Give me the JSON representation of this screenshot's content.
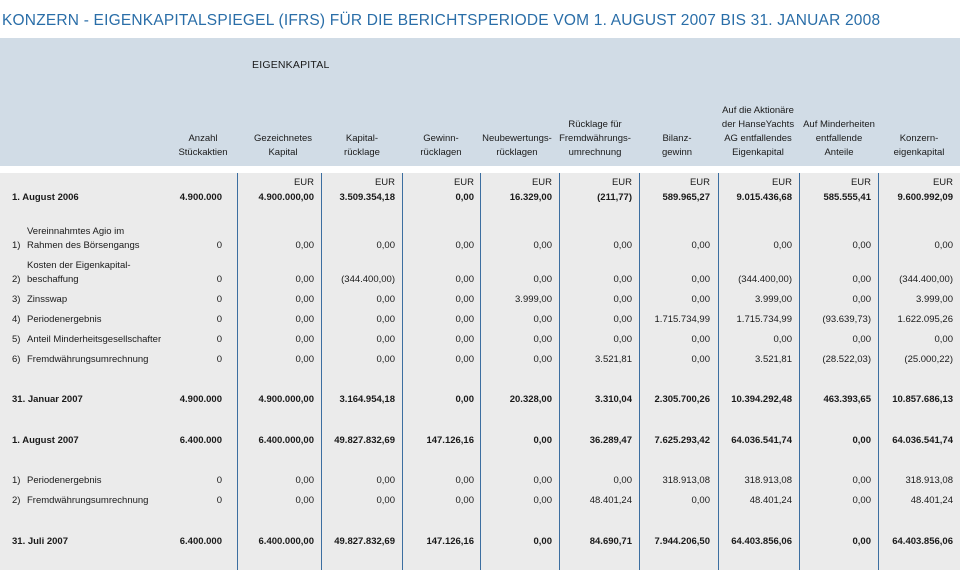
{
  "title": "KONZERN - EIGENKAPITALSPIEGEL (IFRS) FÜR DIE BERICHTSPERIODE VOM 1. AUGUST 2007 BIS 31. JANUAR 2008",
  "group_label": "EIGENKAPITAL",
  "columns": [
    "Anzahl\nStückaktien",
    "Gezeichnetes\nKapital",
    "Kapital-\nrücklage",
    "Gewinn-\nrücklagen",
    "Neubewertungs-\nrücklagen",
    "Rücklage für\nFremdwährungs-\numrechnung",
    "Bilanz-\ngewinn",
    "Auf die Aktionäre\nder HanseYachts\nAG entfallendes\nEigenkapital",
    "Auf Minderheiten\nentfallende\nAnteile",
    "Konzern-\neigenkapital"
  ],
  "currency_row": [
    "",
    "EUR",
    "EUR",
    "EUR",
    "EUR",
    "EUR",
    "EUR",
    "EUR",
    "EUR",
    "EUR"
  ],
  "rows": [
    {
      "num": "",
      "label": "1. August 2006",
      "bold": true,
      "values": [
        "4.900.000",
        "4.900.000,00",
        "3.509.354,18",
        "0,00",
        "16.329,00",
        "(211,77)",
        "589.965,27",
        "9.015.436,68",
        "585.555,41",
        "9.600.992,09"
      ]
    },
    {
      "num": "1)",
      "label": "Vereinnahmtes Agio im\nRahmen des Börsengangs",
      "bold": false,
      "values": [
        "0",
        "0,00",
        "0,00",
        "0,00",
        "0,00",
        "0,00",
        "0,00",
        "0,00",
        "0,00",
        "0,00"
      ]
    },
    {
      "num": "2)",
      "label": "Kosten der Eigenkapital-\nbeschaffung",
      "bold": false,
      "values": [
        "0",
        "0,00",
        "(344.400,00)",
        "0,00",
        "0,00",
        "0,00",
        "0,00",
        "(344.400,00)",
        "0,00",
        "(344.400,00)"
      ]
    },
    {
      "num": "3)",
      "label": "Zinsswap",
      "bold": false,
      "values": [
        "0",
        "0,00",
        "0,00",
        "0,00",
        "3.999,00",
        "0,00",
        "0,00",
        "3.999,00",
        "0,00",
        "3.999,00"
      ]
    },
    {
      "num": "4)",
      "label": "Periodenergebnis",
      "bold": false,
      "values": [
        "0",
        "0,00",
        "0,00",
        "0,00",
        "0,00",
        "0,00",
        "1.715.734,99",
        "1.715.734,99",
        "(93.639,73)",
        "1.622.095,26"
      ]
    },
    {
      "num": "5)",
      "label": "Anteil Minderheitsgesellschafter",
      "bold": false,
      "values": [
        "0",
        "0,00",
        "0,00",
        "0,00",
        "0,00",
        "0,00",
        "0,00",
        "0,00",
        "0,00",
        "0,00"
      ]
    },
    {
      "num": "6)",
      "label": "Fremdwährungsumrechnung",
      "bold": false,
      "values": [
        "0",
        "0,00",
        "0,00",
        "0,00",
        "0,00",
        "3.521,81",
        "0,00",
        "3.521,81",
        "(28.522,03)",
        "(25.000,22)"
      ]
    },
    {
      "num": "",
      "label": "31. Januar 2007",
      "bold": true,
      "values": [
        "4.900.000",
        "4.900.000,00",
        "3.164.954,18",
        "0,00",
        "20.328,00",
        "3.310,04",
        "2.305.700,26",
        "10.394.292,48",
        "463.393,65",
        "10.857.686,13"
      ]
    },
    {
      "num": "",
      "label": "1. August 2007",
      "bold": true,
      "values": [
        "6.400.000",
        "6.400.000,00",
        "49.827.832,69",
        "147.126,16",
        "0,00",
        "36.289,47",
        "7.625.293,42",
        "64.036.541,74",
        "0,00",
        "64.036.541,74"
      ]
    },
    {
      "num": "1)",
      "label": "Periodenergebnis",
      "bold": false,
      "values": [
        "0",
        "0,00",
        "0,00",
        "0,00",
        "0,00",
        "0,00",
        "318.913,08",
        "318.913,08",
        "0,00",
        "318.913,08"
      ]
    },
    {
      "num": "2)",
      "label": "Fremdwährungsumrechnung",
      "bold": false,
      "values": [
        "0",
        "0,00",
        "0,00",
        "0,00",
        "0,00",
        "48.401,24",
        "0,00",
        "48.401,24",
        "0,00",
        "48.401,24"
      ]
    },
    {
      "num": "",
      "label": "31. Juli 2007",
      "bold": true,
      "values": [
        "6.400.000",
        "6.400.000,00",
        "49.827.832,69",
        "147.126,16",
        "0,00",
        "84.690,71",
        "7.944.206,50",
        "64.403.856,06",
        "0,00",
        "64.403.856,06"
      ]
    }
  ],
  "colors": {
    "title": "#2a6ea8",
    "header_band": "#d1dce6",
    "body_band": "#ebebeb",
    "rule": "#3c6ea0"
  }
}
